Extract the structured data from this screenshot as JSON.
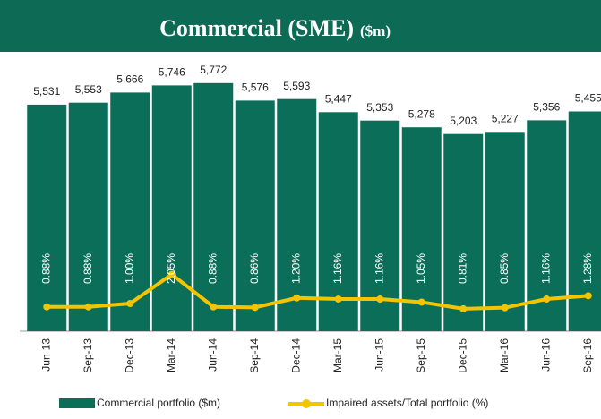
{
  "chart_data": {
    "type": "bar_line",
    "title": "Commercial (SME)",
    "subtitle": "($m)",
    "categories": [
      "Jun-13",
      "Sep-13",
      "Dec-13",
      "Mar-14",
      "Jun-14",
      "Sep-14",
      "Dec-14",
      "Mar-15",
      "Jun-15",
      "Sep-15",
      "Dec-15",
      "Mar-16",
      "Jun-16",
      "Sep-16"
    ],
    "series": [
      {
        "name": "Commercial portfolio ($m)",
        "type": "bar",
        "color": "#0b6e58",
        "values": [
          5531,
          5553,
          5666,
          5746,
          5772,
          5576,
          5593,
          5447,
          5353,
          5278,
          5203,
          5227,
          5356,
          5455
        ],
        "value_labels": [
          "5,531",
          "5,553",
          "5,666",
          "5,746",
          "5,772",
          "5,576",
          "5,593",
          "5,447",
          "5,353",
          "5,278",
          "5,203",
          "5,227",
          "5,356",
          "5,455"
        ]
      },
      {
        "name": "Impaired assets/Total portfolio (%)",
        "type": "line",
        "axis": "y2",
        "color": "#f5c400",
        "values": [
          0.88,
          0.88,
          1.0,
          2.05,
          0.88,
          0.86,
          1.2,
          1.16,
          1.16,
          1.05,
          0.81,
          0.85,
          1.16,
          1.28
        ],
        "value_labels": [
          "0.88%",
          "0.88%",
          "1.00%",
          "2.05%",
          "0.88%",
          "0.86%",
          "1.20%",
          "1.16%",
          "1.16%",
          "1.05%",
          "0.81%",
          "0.85%",
          "1.16%",
          "1.28%"
        ]
      }
    ],
    "ylim": [
      3000,
      6100
    ],
    "y2lim": [
      0,
      10
    ]
  }
}
